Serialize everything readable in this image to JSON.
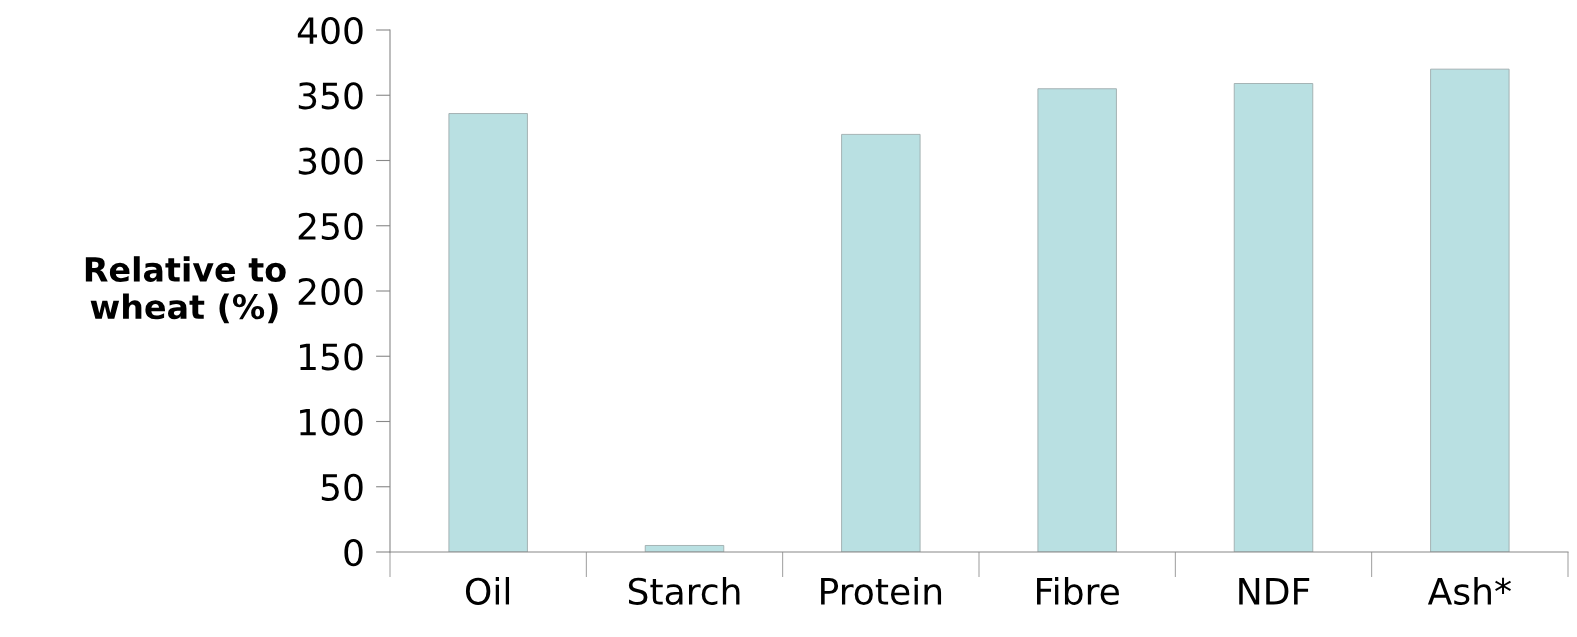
{
  "chart_data": {
    "type": "bar",
    "ylabel": "Relative to\nwheat (%)",
    "categories": [
      "Oil",
      "Starch",
      "Protein",
      "Fibre",
      "NDF",
      "Ash*"
    ],
    "values": [
      336,
      5,
      320,
      355,
      359,
      370
    ],
    "color": "#b9e0e2",
    "ylim": [
      0,
      400
    ],
    "yticks": [
      0,
      50,
      100,
      150,
      200,
      250,
      300,
      350,
      400
    ],
    "grid": false
  }
}
